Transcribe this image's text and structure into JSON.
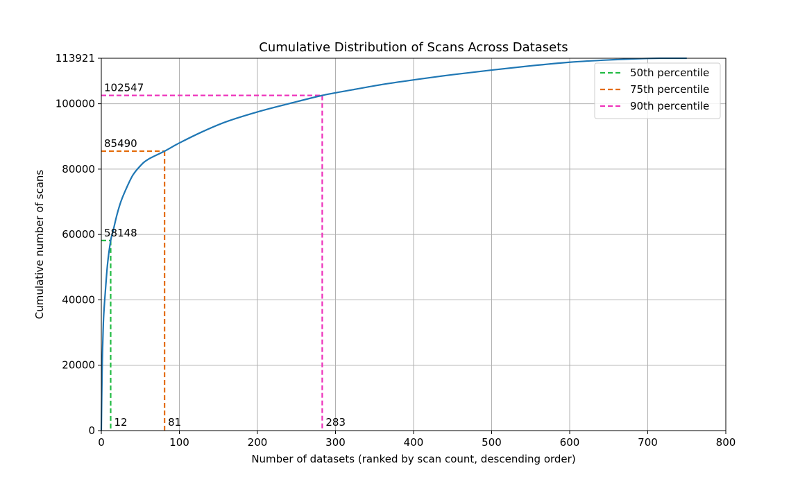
{
  "chart_data": {
    "type": "line",
    "title": "Cumulative Distribution of Scans Across Datasets",
    "xlabel": "Number of datasets (ranked by scan count, descending order)",
    "ylabel": "Cumulative number of scans",
    "xlim": [
      0,
      800
    ],
    "ylim": [
      0,
      113921
    ],
    "grid": true,
    "legend_position": "top-right",
    "x_ticks": [
      0,
      100,
      200,
      300,
      400,
      500,
      600,
      700,
      800
    ],
    "y_ticks": [
      0,
      20000,
      40000,
      60000,
      80000,
      100000,
      113921
    ],
    "series": [
      {
        "color": "#1f77b4",
        "x": [
          0,
          1,
          2,
          3,
          5,
          8,
          12,
          15,
          20,
          25,
          30,
          40,
          50,
          60,
          81,
          100,
          130,
          160,
          200,
          240,
          283,
          320,
          360,
          400,
          450,
          500,
          550,
          600,
          650,
          700,
          720,
          750
        ],
        "y": [
          0,
          18000,
          28000,
          35000,
          42000,
          51000,
          58148,
          61000,
          66000,
          70000,
          73000,
          78000,
          81000,
          83000,
          85490,
          88000,
          91500,
          94500,
          97500,
          100000,
          102547,
          104200,
          105900,
          107300,
          108900,
          110300,
          111600,
          112700,
          113400,
          113850,
          113921,
          113921
        ]
      }
    ],
    "percentiles": [
      {
        "name": "50th percentile",
        "color": "#22bb44",
        "x": 12,
        "y": 58148,
        "x_label": "12",
        "y_label": "58148"
      },
      {
        "name": "75th percentile",
        "color": "#e36c0a",
        "x": 81,
        "y": 85490,
        "x_label": "81",
        "y_label": "85490"
      },
      {
        "name": "90th percentile",
        "color": "#ee33bb",
        "x": 283,
        "y": 102547,
        "x_label": "283",
        "y_label": "102547"
      }
    ]
  }
}
